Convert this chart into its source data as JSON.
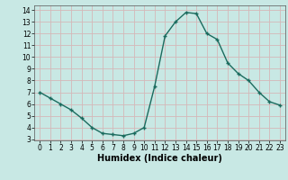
{
  "x": [
    0,
    1,
    2,
    3,
    4,
    5,
    6,
    7,
    8,
    9,
    10,
    11,
    12,
    13,
    14,
    15,
    16,
    17,
    18,
    19,
    20,
    21,
    22,
    23
  ],
  "y": [
    7.0,
    6.5,
    6.0,
    5.5,
    4.8,
    4.0,
    3.5,
    3.4,
    3.3,
    3.5,
    4.0,
    7.5,
    11.8,
    13.0,
    13.8,
    13.7,
    12.0,
    11.5,
    9.5,
    8.6,
    8.0,
    7.0,
    6.2,
    5.9
  ],
  "xlabel": "Humidex (Indice chaleur)",
  "ylim_min": 3,
  "ylim_max": 14,
  "xlim_min": 0,
  "xlim_max": 23,
  "yticks": [
    3,
    4,
    5,
    6,
    7,
    8,
    9,
    10,
    11,
    12,
    13,
    14
  ],
  "xticks": [
    0,
    1,
    2,
    3,
    4,
    5,
    6,
    7,
    8,
    9,
    10,
    11,
    12,
    13,
    14,
    15,
    16,
    17,
    18,
    19,
    20,
    21,
    22,
    23
  ],
  "line_color": "#1a6b5e",
  "marker_size": 3.0,
  "bg_color": "#c8e8e4",
  "grid_color": "#d4b8b8",
  "axes_bg": "#c8e8e4",
  "tick_fontsize": 5.5,
  "xlabel_fontsize": 7.0
}
